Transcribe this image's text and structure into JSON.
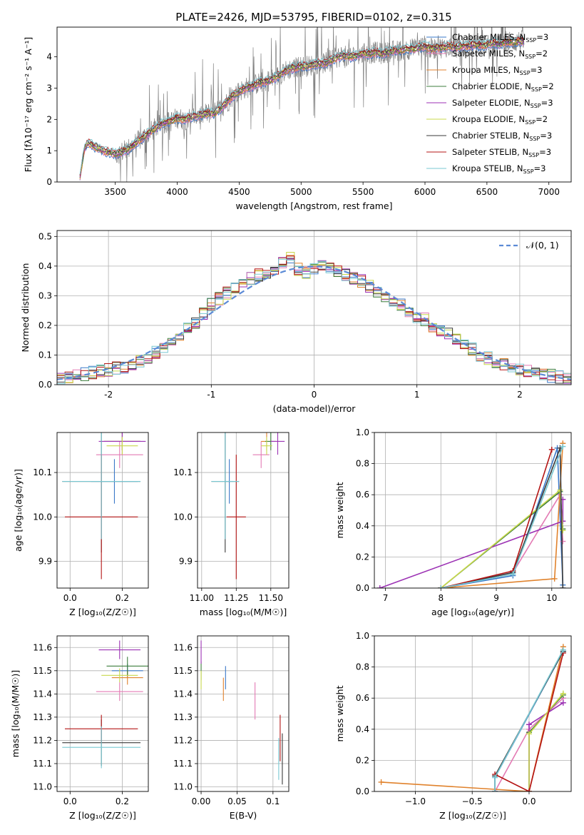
{
  "title": "PLATE=2426, MJD=53795, FIBERID=0102, z=0.315",
  "colors": {
    "Chabrier MILES": "#3a78c8",
    "Salpeter MILES": "#e37ab4",
    "Kroupa MILES": "#e0822c",
    "Chabrier ELODIE": "#3c7d3c",
    "Salpeter ELODIE": "#9c32b4",
    "Kroupa ELODIE": "#c8d84c",
    "Chabrier STELIB": "#3a3a3a",
    "Salpeter STELIB": "#b41414",
    "Kroupa STELIB": "#78c8d2",
    "data": "#808080",
    "normal": "#5b8ad6"
  },
  "chart_data": [
    {
      "id": "spectrum",
      "type": "line",
      "xlabel": "wavelength [Angstrom, rest frame]",
      "ylabel": "Flux [fλ10⁻¹⁷ erg cm⁻² s⁻¹ A⁻¹]",
      "xlim": [
        3030,
        7180
      ],
      "ylim": [
        0,
        4.95
      ],
      "xticks": [
        3500,
        4000,
        4500,
        5000,
        5500,
        6000,
        6500,
        7000
      ],
      "yticks": [
        0,
        1,
        2,
        3,
        4
      ],
      "legend": [
        {
          "label": "Chabrier MILES, N",
          "sub": "SSP",
          "suffix": "=3",
          "key": "Chabrier MILES"
        },
        {
          "label": "Salpeter MILES, N",
          "sub": "SSP",
          "suffix": "=2",
          "key": "Salpeter MILES"
        },
        {
          "label": "Kroupa MILES, N",
          "sub": "SSP",
          "suffix": "=3",
          "key": "Kroupa MILES"
        },
        {
          "label": "Chabrier ELODIE, N",
          "sub": "SSP",
          "suffix": "=2",
          "key": "Chabrier ELODIE"
        },
        {
          "label": "Salpeter ELODIE, N",
          "sub": "SSP",
          "suffix": "=3",
          "key": "Salpeter ELODIE"
        },
        {
          "label": "Kroupa ELODIE, N",
          "sub": "SSP",
          "suffix": "=2",
          "key": "Kroupa ELODIE"
        },
        {
          "label": "Chabrier STELIB, N",
          "sub": "SSP",
          "suffix": "=3",
          "key": "Chabrier STELIB"
        },
        {
          "label": "Salpeter STELIB, N",
          "sub": "SSP",
          "suffix": "=3",
          "key": "Salpeter STELIB"
        },
        {
          "label": "Kroupa STELIB, N",
          "sub": "SSP",
          "suffix": "=3",
          "key": "Kroupa STELIB"
        }
      ],
      "continuum": {
        "x": [
          3210,
          3250,
          3280,
          3300,
          3350,
          3400,
          3450,
          3500,
          3550,
          3600,
          3650,
          3700,
          3750,
          3800,
          3850,
          3900,
          3950,
          4000,
          4050,
          4100,
          4150,
          4200,
          4250,
          4300,
          4350,
          4400,
          4450,
          4500,
          4550,
          4600,
          4650,
          4700,
          4750,
          4800,
          4850,
          4900,
          4950,
          5000,
          5050,
          5100,
          5150,
          5200,
          5250,
          5300,
          5350,
          5400,
          5450,
          5500,
          5550,
          5600,
          5650,
          5700,
          5750,
          5800,
          5850,
          5900,
          5950,
          6000,
          6050,
          6100,
          6150,
          6200,
          6250,
          6300,
          6350,
          6400,
          6450,
          6500,
          6550,
          6600,
          6650,
          6700,
          6750,
          6800
        ],
        "y": [
          0.0,
          1.05,
          1.25,
          1.2,
          1.1,
          1.0,
          0.95,
          0.9,
          0.95,
          1.05,
          1.2,
          1.35,
          1.5,
          1.65,
          1.8,
          1.9,
          1.95,
          2.05,
          2.0,
          2.05,
          2.1,
          2.15,
          2.2,
          2.2,
          2.35,
          2.55,
          2.75,
          2.9,
          3.0,
          3.05,
          3.15,
          3.2,
          3.25,
          3.35,
          3.5,
          3.6,
          3.65,
          3.7,
          3.7,
          3.75,
          3.8,
          3.8,
          3.9,
          4.0,
          4.05,
          4.0,
          4.05,
          4.1,
          4.1,
          4.15,
          4.1,
          4.15,
          4.2,
          4.2,
          4.25,
          4.25,
          4.3,
          4.35,
          4.25,
          4.3,
          4.3,
          4.35,
          4.3,
          4.35,
          4.35,
          4.4,
          4.35,
          4.4,
          4.45,
          4.4,
          4.5,
          4.45,
          4.5,
          4.5
        ]
      }
    },
    {
      "id": "residuals",
      "type": "line",
      "xlabel": "(data-model)/error",
      "ylabel": "Normed distribution",
      "xlim": [
        -2.5,
        2.5
      ],
      "ylim": [
        0,
        0.52
      ],
      "xticks": [
        -2,
        -1,
        0,
        1,
        2
      ],
      "yticks": [
        0.0,
        0.1,
        0.2,
        0.3,
        0.4,
        0.5
      ],
      "legend": "𝒩(0, 1)",
      "bin_width": 0.1,
      "base_hist": [
        0.025,
        0.025,
        0.03,
        0.035,
        0.04,
        0.045,
        0.05,
        0.055,
        0.06,
        0.07,
        0.08,
        0.09,
        0.11,
        0.13,
        0.15,
        0.17,
        0.19,
        0.21,
        0.24,
        0.27,
        0.29,
        0.31,
        0.33,
        0.34,
        0.36,
        0.37,
        0.38,
        0.39,
        0.41,
        0.43,
        0.39,
        0.38,
        0.39,
        0.4,
        0.39,
        0.38,
        0.37,
        0.36,
        0.35,
        0.33,
        0.31,
        0.3,
        0.28,
        0.27,
        0.25,
        0.23,
        0.22,
        0.2,
        0.18,
        0.17,
        0.15,
        0.13,
        0.12,
        0.1,
        0.09,
        0.08,
        0.07,
        0.06,
        0.05,
        0.045,
        0.04,
        0.035,
        0.03,
        0.025,
        0.025
      ]
    },
    {
      "id": "z-age",
      "type": "scatter",
      "xlabel": "Z [log₁₀(Z/Z☉)]",
      "ylabel": "age  [log₁₀(age/yr)]",
      "xlim": [
        -0.05,
        0.3
      ],
      "ylim": [
        9.84,
        10.19
      ],
      "xticks": [
        0.0,
        0.2
      ],
      "yticks": [
        9.9,
        10.0,
        10.1
      ],
      "points": [
        {
          "key": "Chabrier MILES",
          "x": 0.17,
          "xerr": 0.09,
          "y": 10.08,
          "yerr": 0.05
        },
        {
          "key": "Salpeter MILES",
          "x": 0.19,
          "xerr": 0.09,
          "y": 10.14,
          "yerr": 0.03
        },
        {
          "key": "Kroupa MILES",
          "x": 0.2,
          "xerr": 0.07,
          "y": 10.17,
          "yerr": 0.02
        },
        {
          "key": "Chabrier ELODIE",
          "x": 0.2,
          "xerr": 0.07,
          "y": 10.17,
          "yerr": 0.02
        },
        {
          "key": "Salpeter ELODIE",
          "x": 0.2,
          "xerr": 0.09,
          "y": 10.17,
          "yerr": 0.03
        },
        {
          "key": "Kroupa ELODIE",
          "x": 0.2,
          "xerr": 0.06,
          "y": 10.16,
          "yerr": 0.02
        },
        {
          "key": "Chabrier STELIB",
          "x": 0.12,
          "xerr": 0.15,
          "y": 10.08,
          "yerr": 0.16
        },
        {
          "key": "Salpeter STELIB",
          "x": 0.12,
          "xerr": 0.14,
          "y": 10.0,
          "yerr": 0.14
        },
        {
          "key": "Kroupa STELIB",
          "x": 0.12,
          "xerr": 0.15,
          "y": 10.08,
          "yerr": 0.13
        }
      ]
    },
    {
      "id": "mass-age",
      "type": "scatter",
      "xlabel": "mass [log₁₀(M/M☉)]",
      "ylabel": "",
      "xlim": [
        10.97,
        11.63
      ],
      "ylim": [
        9.84,
        10.19
      ],
      "xticks": [
        11.0,
        11.25,
        11.5
      ],
      "yticks": [
        9.9,
        10.0,
        10.1
      ],
      "points": [
        {
          "key": "Chabrier MILES",
          "x": 11.2,
          "xerr": 0.03,
          "y": 10.08,
          "yerr": 0.05
        },
        {
          "key": "Salpeter MILES",
          "x": 11.43,
          "xerr": 0.06,
          "y": 10.14,
          "yerr": 0.03
        },
        {
          "key": "Kroupa MILES",
          "x": 11.47,
          "xerr": 0.04,
          "y": 10.17,
          "yerr": 0.02
        },
        {
          "key": "Chabrier ELODIE",
          "x": 11.5,
          "xerr": 0.04,
          "y": 10.17,
          "yerr": 0.02
        },
        {
          "key": "Salpeter ELODIE",
          "x": 11.55,
          "xerr": 0.05,
          "y": 10.17,
          "yerr": 0.03
        },
        {
          "key": "Kroupa ELODIE",
          "x": 11.47,
          "xerr": 0.04,
          "y": 10.16,
          "yerr": 0.02
        },
        {
          "key": "Chabrier STELIB",
          "x": 11.17,
          "xerr": 0.1,
          "y": 10.08,
          "yerr": 0.16
        },
        {
          "key": "Salpeter STELIB",
          "x": 11.25,
          "xerr": 0.07,
          "y": 10.0,
          "yerr": 0.14
        },
        {
          "key": "Kroupa STELIB",
          "x": 11.17,
          "xerr": 0.1,
          "y": 10.08,
          "yerr": 0.13
        }
      ]
    },
    {
      "id": "age-massweight",
      "type": "line",
      "xlabel": "age  [log₁₀(age/yr)]",
      "ylabel": "mass weight",
      "xlim": [
        6.8,
        10.35
      ],
      "ylim": [
        0,
        1.0
      ],
      "xticks": [
        7,
        8,
        9,
        10
      ],
      "yticks": [
        0.0,
        0.2,
        0.4,
        0.6,
        0.8,
        1.0
      ],
      "lines": [
        {
          "key": "Chabrier MILES",
          "x": [
            8.0,
            9.3,
            10.1,
            10.2
          ],
          "y": [
            0.0,
            0.08,
            0.9,
            0.02
          ]
        },
        {
          "key": "Salpeter MILES",
          "x": [
            8.0,
            9.3,
            10.15,
            10.2
          ],
          "y": [
            0.0,
            0.1,
            0.6,
            0.3
          ]
        },
        {
          "key": "Kroupa MILES",
          "x": [
            8.0,
            10.05,
            10.2
          ],
          "y": [
            0.0,
            0.06,
            0.93
          ]
        },
        {
          "key": "Chabrier ELODIE",
          "x": [
            8.0,
            10.15,
            10.2
          ],
          "y": [
            0.0,
            0.62,
            0.38
          ]
        },
        {
          "key": "Salpeter ELODIE",
          "x": [
            6.9,
            10.2,
            10.2
          ],
          "y": [
            0.0,
            0.43,
            0.57
          ]
        },
        {
          "key": "Kroupa ELODIE",
          "x": [
            8.0,
            10.15,
            10.2
          ],
          "y": [
            0.0,
            0.63,
            0.37
          ]
        },
        {
          "key": "Chabrier STELIB",
          "x": [
            8.0,
            9.3,
            10.15,
            10.2
          ],
          "y": [
            0.0,
            0.1,
            0.9,
            0.0
          ]
        },
        {
          "key": "Salpeter STELIB",
          "x": [
            8.0,
            9.3,
            10.0
          ],
          "y": [
            0.0,
            0.11,
            0.89
          ]
        },
        {
          "key": "Kroupa STELIB",
          "x": [
            8.0,
            9.3,
            10.2
          ],
          "y": [
            0.0,
            0.09,
            0.91
          ]
        }
      ]
    },
    {
      "id": "z-mass",
      "type": "scatter",
      "xlabel": "Z [log₁₀(Z/Z☉)]",
      "ylabel": "mass [log₁₀(M/M☉)]",
      "xlim": [
        -0.05,
        0.3
      ],
      "ylim": [
        10.98,
        11.65
      ],
      "xticks": [
        0.0,
        0.2
      ],
      "yticks": [
        11.0,
        11.1,
        11.2,
        11.3,
        11.4,
        11.5,
        11.6
      ],
      "points": [
        {
          "key": "Chabrier MILES",
          "x": 0.22,
          "xerr": 0.06,
          "y": 11.5,
          "yerr": 0.03
        },
        {
          "key": "Salpeter MILES",
          "x": 0.19,
          "xerr": 0.09,
          "y": 11.41,
          "yerr": 0.04
        },
        {
          "key": "Kroupa MILES",
          "x": 0.22,
          "xerr": 0.06,
          "y": 11.47,
          "yerr": 0.03
        },
        {
          "key": "Chabrier ELODIE",
          "x": 0.22,
          "xerr": 0.08,
          "y": 11.52,
          "yerr": 0.04
        },
        {
          "key": "Salpeter ELODIE",
          "x": 0.19,
          "xerr": 0.08,
          "y": 11.59,
          "yerr": 0.04
        },
        {
          "key": "Kroupa ELODIE",
          "x": 0.19,
          "xerr": 0.07,
          "y": 11.48,
          "yerr": 0.03
        },
        {
          "key": "Chabrier STELIB",
          "x": 0.12,
          "xerr": 0.15,
          "y": 11.19,
          "yerr": 0.1
        },
        {
          "key": "Salpeter STELIB",
          "x": 0.12,
          "xerr": 0.14,
          "y": 11.25,
          "yerr": 0.06
        },
        {
          "key": "Kroupa STELIB",
          "x": 0.12,
          "xerr": 0.15,
          "y": 11.17,
          "yerr": 0.09
        }
      ]
    },
    {
      "id": "ebv-mass",
      "type": "scatter",
      "xlabel": "E(B-V)",
      "ylabel": "",
      "xlim": [
        -0.005,
        0.122
      ],
      "ylim": [
        10.98,
        11.65
      ],
      "xticks": [
        0.0,
        0.05,
        0.1
      ],
      "yticks": [
        11.0,
        11.1,
        11.2,
        11.3,
        11.4,
        11.5,
        11.6
      ],
      "points": [
        {
          "key": "Chabrier MILES",
          "x": 0.034,
          "xerr": 0,
          "y": 11.47,
          "yerr": 0.05
        },
        {
          "key": "Salpeter MILES",
          "x": 0.075,
          "xerr": 0,
          "y": 11.37,
          "yerr": 0.08
        },
        {
          "key": "Kroupa MILES",
          "x": 0.031,
          "xerr": 0,
          "y": 11.42,
          "yerr": 0.05
        },
        {
          "key": "Chabrier ELODIE",
          "x": 0.0,
          "xerr": 0,
          "y": 11.5,
          "yerr": 0.04
        },
        {
          "key": "Salpeter ELODIE",
          "x": 0.0,
          "xerr": 0,
          "y": 11.58,
          "yerr": 0.05
        },
        {
          "key": "Kroupa ELODIE",
          "x": 0.0,
          "xerr": 0,
          "y": 11.46,
          "yerr": 0.04
        },
        {
          "key": "Chabrier STELIB",
          "x": 0.113,
          "xerr": 0,
          "y": 11.12,
          "yerr": 0.11
        },
        {
          "key": "Salpeter STELIB",
          "x": 0.11,
          "xerr": 0,
          "y": 11.21,
          "yerr": 0.1
        },
        {
          "key": "Kroupa STELIB",
          "x": 0.108,
          "xerr": 0,
          "y": 11.12,
          "yerr": 0.09
        }
      ]
    },
    {
      "id": "z-massweight",
      "type": "line",
      "xlabel": "Z [log₁₀(Z/Z☉)]",
      "ylabel": "mass weight",
      "xlim": [
        -1.36,
        0.37
      ],
      "ylim": [
        0,
        1.0
      ],
      "xticks": [
        -1.0,
        -0.5,
        0.0
      ],
      "yticks": [
        0.0,
        0.2,
        0.4,
        0.6,
        0.8,
        1.0
      ],
      "lines": [
        {
          "key": "Chabrier MILES",
          "x": [
            -0.3,
            -0.3,
            0.3
          ],
          "y": [
            0.0,
            0.09,
            0.9
          ]
        },
        {
          "key": "Salpeter MILES",
          "x": [
            -0.3,
            0.0,
            0.3
          ],
          "y": [
            0.0,
            0.4,
            0.6
          ]
        },
        {
          "key": "Kroupa MILES",
          "x": [
            -1.3,
            0.0,
            0.3
          ],
          "y": [
            0.06,
            0.0,
            0.93
          ]
        },
        {
          "key": "Chabrier ELODIE",
          "x": [
            0.0,
            0.0,
            0.3
          ],
          "y": [
            0.0,
            0.38,
            0.62
          ]
        },
        {
          "key": "Salpeter ELODIE",
          "x": [
            0.0,
            0.0,
            0.3
          ],
          "y": [
            0.0,
            0.43,
            0.57
          ]
        },
        {
          "key": "Kroupa ELODIE",
          "x": [
            0.0,
            0.0,
            0.3
          ],
          "y": [
            0.0,
            0.37,
            0.63
          ]
        },
        {
          "key": "Chabrier STELIB",
          "x": [
            -0.3,
            -0.3,
            0.3
          ],
          "y": [
            0.0,
            0.1,
            0.9
          ]
        },
        {
          "key": "Salpeter STELIB",
          "x": [
            -0.3,
            0.0,
            0.3
          ],
          "y": [
            0.11,
            0.0,
            0.89
          ]
        },
        {
          "key": "Kroupa STELIB",
          "x": [
            -0.3,
            -0.3,
            0.3
          ],
          "y": [
            0.0,
            0.09,
            0.91
          ]
        }
      ]
    }
  ]
}
